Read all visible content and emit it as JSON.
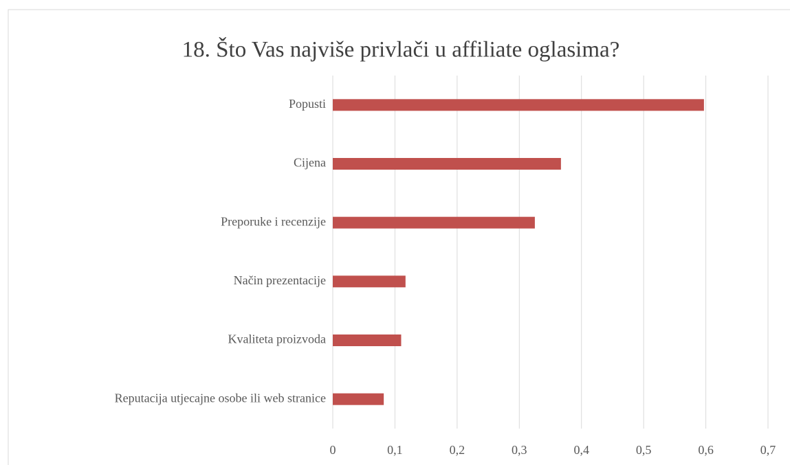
{
  "chart_data": {
    "type": "bar",
    "orientation": "horizontal",
    "title": "18. Što Vas najviše privlači u affiliate oglasima?",
    "categories": [
      "Popusti",
      "Cijena",
      "Preporuke i recenzije",
      "Način prezentacije",
      "Kvaliteta proizvoda",
      "Reputacija utjecajne osobe ili web stranice"
    ],
    "values": [
      0.597,
      0.367,
      0.325,
      0.117,
      0.11,
      0.082
    ],
    "color": "#c0504d",
    "xlim": [
      0,
      0.7
    ],
    "xticks": [
      0,
      {
        "value": 0.1,
        "label": "0,1"
      },
      {
        "value": 0.2,
        "label": "0,2"
      },
      {
        "value": 0.3,
        "label": "0,3"
      },
      {
        "value": 0.4,
        "label": "0,4"
      },
      {
        "value": 0.5,
        "label": "0,5"
      },
      {
        "value": 0.6,
        "label": "0,6"
      },
      {
        "value": 0.7,
        "label": "0,7"
      }
    ],
    "grid": true
  }
}
